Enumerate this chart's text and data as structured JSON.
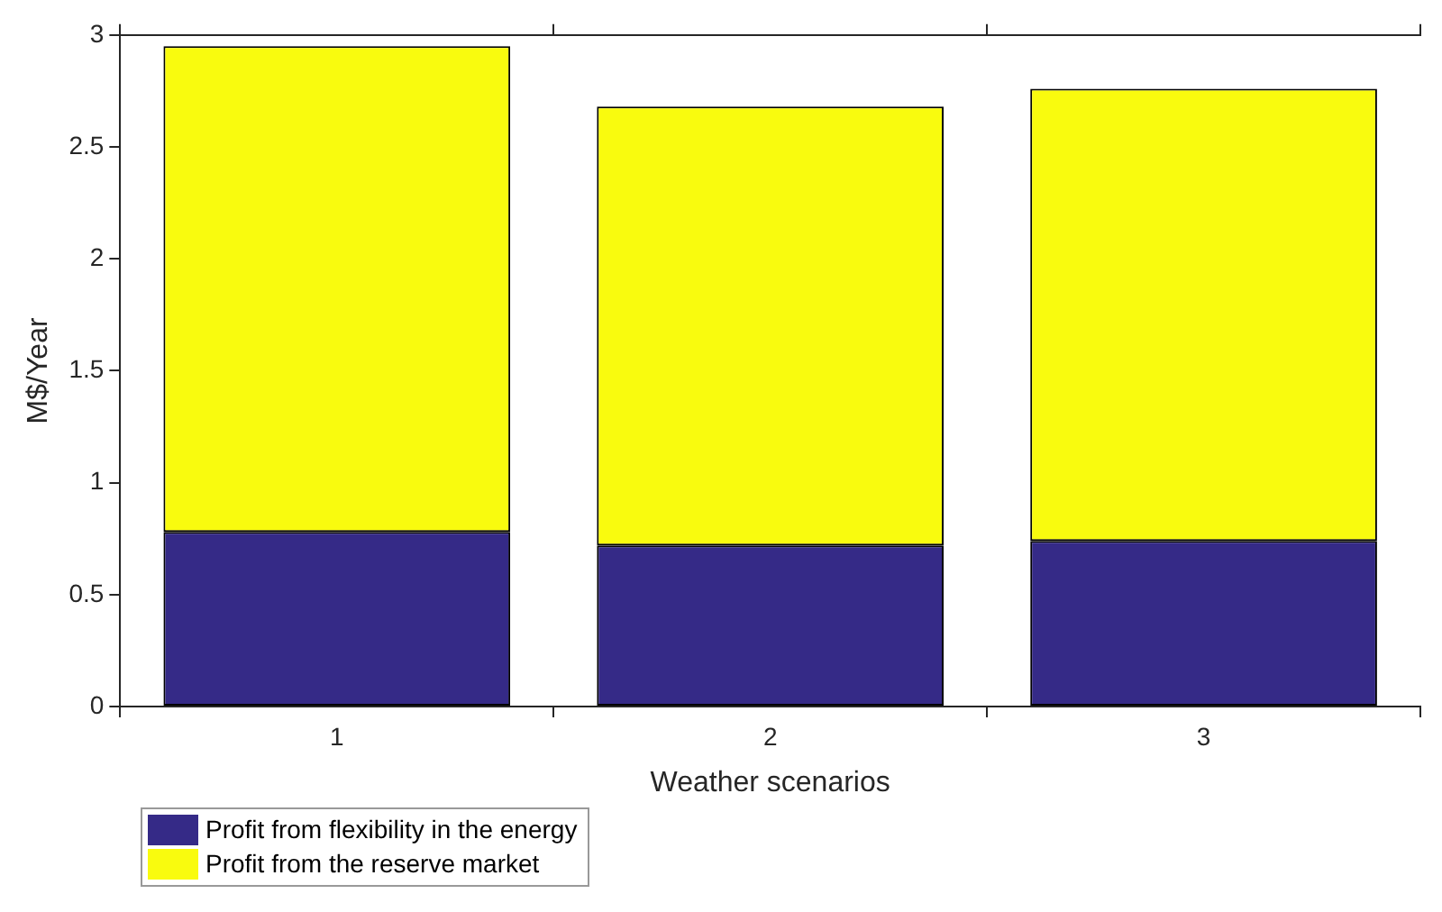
{
  "chart_data": {
    "type": "bar",
    "stacked": true,
    "xlabel": "Weather scenarios",
    "ylabel": "M$/Year",
    "categories": [
      "1",
      "2",
      "3"
    ],
    "series": [
      {
        "name": "Profit from flexibility in the energy",
        "color": "#352a87",
        "values": [
          0.78,
          0.72,
          0.74
        ]
      },
      {
        "name": "Profit from the reserve market",
        "color": "#f9fb0e",
        "values": [
          2.17,
          1.96,
          2.02
        ]
      }
    ],
    "ylim": [
      0,
      3
    ],
    "yticks": [
      0,
      0.5,
      1,
      1.5,
      2,
      2.5,
      3
    ],
    "grid": false,
    "legend": "bottom left"
  }
}
